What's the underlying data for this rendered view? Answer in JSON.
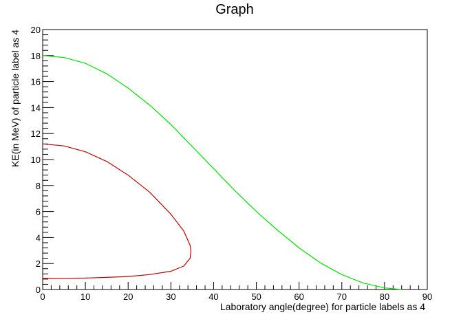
{
  "chart_data": {
    "type": "line",
    "title": "Graph",
    "xlabel": "Laboratory angle(degree) for particle labels as 4",
    "ylabel": "KE(in MeV) of particle label as 4",
    "xlim": [
      0,
      90
    ],
    "ylim": [
      0,
      20
    ],
    "xticks": [
      0,
      10,
      20,
      30,
      40,
      50,
      60,
      70,
      80,
      90
    ],
    "yticks": [
      0,
      2,
      4,
      6,
      8,
      10,
      12,
      14,
      16,
      18,
      20
    ],
    "grid": false,
    "legend": "none",
    "series": [
      {
        "color": "#00e000",
        "x": [
          0,
          5,
          10,
          15,
          20,
          25,
          30,
          35,
          40,
          45,
          50,
          55,
          60,
          65,
          70,
          75,
          80,
          84
        ],
        "y": [
          18.0,
          17.85,
          17.4,
          16.6,
          15.5,
          14.2,
          12.7,
          11.0,
          9.3,
          7.6,
          6.0,
          4.55,
          3.2,
          2.05,
          1.15,
          0.5,
          0.12,
          0.0
        ]
      },
      {
        "color": "#c00000",
        "x": [
          0,
          5,
          10,
          15,
          20,
          25,
          30,
          33,
          34.5,
          34.7,
          34.5,
          33,
          30,
          25,
          20,
          15,
          10,
          5,
          0
        ],
        "y": [
          11.2,
          11.05,
          10.6,
          9.85,
          8.8,
          7.5,
          5.8,
          4.5,
          3.4,
          3.0,
          2.4,
          1.8,
          1.4,
          1.15,
          1.0,
          0.93,
          0.88,
          0.86,
          0.85
        ]
      }
    ]
  }
}
